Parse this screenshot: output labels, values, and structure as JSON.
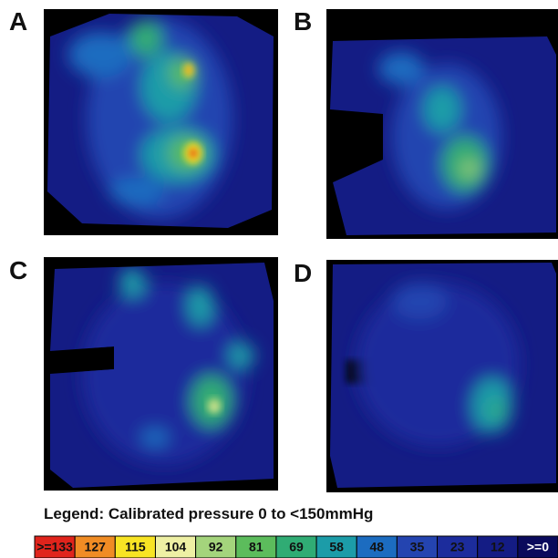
{
  "panels": [
    {
      "label": "A"
    },
    {
      "label": "B"
    },
    {
      "label": "C"
    },
    {
      "label": "D"
    }
  ],
  "legend": {
    "title": "Legend: Calibrated pressure 0 to <150mmHg",
    "items": [
      {
        "label": ">=133",
        "color": "#e0241c"
      },
      {
        "label": "127",
        "color": "#f08c24"
      },
      {
        "label": "115",
        "color": "#f8e424"
      },
      {
        "label": "104",
        "color": "#eef0a4"
      },
      {
        "label": "92",
        "color": "#a4d47c"
      },
      {
        "label": "81",
        "color": "#5cbc5c"
      },
      {
        "label": "69",
        "color": "#30ac74"
      },
      {
        "label": "58",
        "color": "#1c9ca8"
      },
      {
        "label": "48",
        "color": "#1c6cc0"
      },
      {
        "label": "35",
        "color": "#2444b0"
      },
      {
        "label": "23",
        "color": "#1c2c9c"
      },
      {
        "label": "12",
        "color": "#141c84"
      },
      {
        "label": ">=0",
        "color": "#0a0a5c"
      }
    ]
  }
}
